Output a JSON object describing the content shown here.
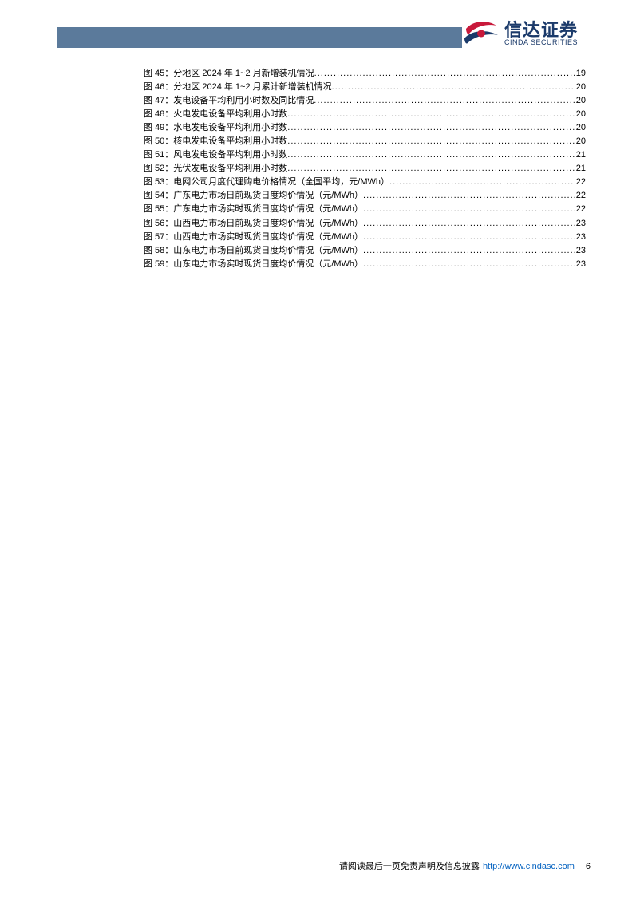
{
  "header": {
    "bar_color": "#5b7a9b",
    "logo_cn": "信达证券",
    "logo_en": "CINDA SECURITIES",
    "logo_text_color": "#1b3a6a",
    "logo_accent_color": "#c8193b"
  },
  "toc": {
    "prefix": "图",
    "items": [
      {
        "num": "45",
        "title": "分地区 2024 年 1~2 月新增装机情况",
        "page": "19"
      },
      {
        "num": "46",
        "title": "分地区 2024 年 1~2 月累计新增装机情况",
        "page": "20"
      },
      {
        "num": "47",
        "title": "发电设备平均利用小时数及同比情况",
        "page": "20"
      },
      {
        "num": "48",
        "title": "火电发电设备平均利用小时数",
        "page": "20"
      },
      {
        "num": "49",
        "title": "水电发电设备平均利用小时数",
        "page": "20"
      },
      {
        "num": "50",
        "title": "核电发电设备平均利用小时数",
        "page": "20"
      },
      {
        "num": "51",
        "title": "风电发电设备平均利用小时数",
        "page": "21"
      },
      {
        "num": "52",
        "title": "光伏发电设备平均利用小时数",
        "page": "21"
      },
      {
        "num": "53",
        "title": "电网公司月度代理购电价格情况（全国平均，元/MWh）",
        "page": "22"
      },
      {
        "num": "54",
        "title": "广东电力市场日前现货日度均价情况（元/MWh）",
        "page": "22"
      },
      {
        "num": "55",
        "title": "广东电力市场实时现货日度均价情况（元/MWh）",
        "page": "22"
      },
      {
        "num": "56",
        "title": "山西电力市场日前现货日度均价情况（元/MWh）",
        "page": "23"
      },
      {
        "num": "57",
        "title": "山西电力市场实时现货日度均价情况（元/MWh）",
        "page": "23"
      },
      {
        "num": "58",
        "title": "山东电力市场日前现货日度均价情况（元/MWh）",
        "page": "23"
      },
      {
        "num": "59",
        "title": "山东电力市场实时现货日度均价情况（元/MWh）",
        "page": "23"
      }
    ]
  },
  "footer": {
    "disclaimer": "请阅读最后一页免责声明及信息披露",
    "url": "http://www.cindasc.com",
    "page_number": "6"
  }
}
